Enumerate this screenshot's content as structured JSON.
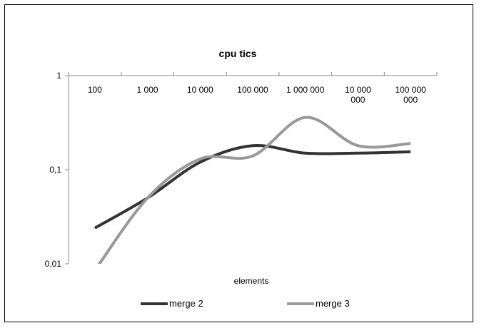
{
  "chart_data": {
    "type": "line",
    "title": "cpu tics",
    "xlabel": "elements",
    "ylabel": "",
    "y_scale": "log",
    "ylim": [
      0.01,
      1
    ],
    "y_ticks": [
      {
        "value": 1,
        "label": "1"
      },
      {
        "value": 0.1,
        "label": "0,1"
      },
      {
        "value": 0.01,
        "label": "0,01"
      }
    ],
    "x_axis_position": "top",
    "categories": [
      [
        "100"
      ],
      [
        "1 000"
      ],
      [
        "10 000"
      ],
      [
        "100 000"
      ],
      [
        "1 000 000"
      ],
      [
        "10 000",
        "000"
      ],
      [
        "100 000",
        "000"
      ]
    ],
    "series": [
      {
        "name": "merge 2",
        "color": "#333333",
        "values": [
          0.024,
          0.05,
          0.12,
          0.18,
          0.15,
          0.15,
          0.155
        ]
      },
      {
        "name": "merge 3",
        "color": "#999999",
        "values": [
          0.0085,
          0.05,
          0.13,
          0.14,
          0.36,
          0.18,
          0.19
        ]
      }
    ],
    "grid": false,
    "legend_position": "bottom"
  }
}
